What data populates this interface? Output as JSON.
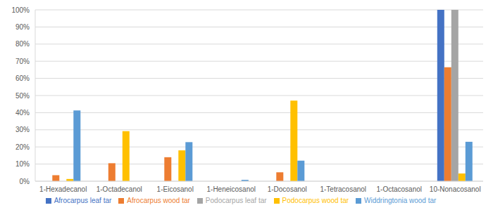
{
  "chart_data": {
    "type": "bar",
    "categories": [
      "1-Hexadecanol",
      "1-Octadecanol",
      "1-Eicosanol",
      "1-Heneicosanol",
      "1-Docosanol",
      "1-Tetracosanol",
      "1-Octacosanol",
      "10-Nonacosanol"
    ],
    "series": [
      {
        "name": "Afrocarpus leaf tar",
        "color": "#4472c4",
        "values": [
          0,
          0,
          0,
          0,
          0,
          0,
          0,
          100
        ]
      },
      {
        "name": "Afrocarpus wood tar",
        "color": "#ed7d31",
        "values": [
          3.5,
          10.5,
          14,
          0,
          5.2,
          0,
          0,
          66.5
        ]
      },
      {
        "name": "Podocarpus leaf tar",
        "color": "#a5a5a5",
        "values": [
          0,
          0,
          0,
          0,
          0,
          0,
          0,
          100
        ]
      },
      {
        "name": "Podocarpus wood tar",
        "color": "#ffc000",
        "values": [
          1.3,
          29.2,
          18,
          0,
          47,
          0,
          0,
          4.5
        ]
      },
      {
        "name": "Widdringtonia wood tar",
        "color": "#5b9bd5",
        "values": [
          41.3,
          0,
          22.8,
          0.8,
          12,
          0,
          0,
          23
        ]
      }
    ],
    "ylim": [
      0,
      100
    ],
    "yticks": [
      {
        "value": 0,
        "label": "0%"
      },
      {
        "value": 10,
        "label": "10%"
      },
      {
        "value": 20,
        "label": "20%"
      },
      {
        "value": 30,
        "label": "30%"
      },
      {
        "value": 40,
        "label": "40%"
      },
      {
        "value": 50,
        "label": "50%"
      },
      {
        "value": 60,
        "label": "60%"
      },
      {
        "value": 70,
        "label": "70%"
      },
      {
        "value": 80,
        "label": "80%"
      },
      {
        "value": 90,
        "label": "90%"
      },
      {
        "value": 100,
        "label": "100%"
      }
    ],
    "grid": true,
    "legend": "bottom"
  }
}
